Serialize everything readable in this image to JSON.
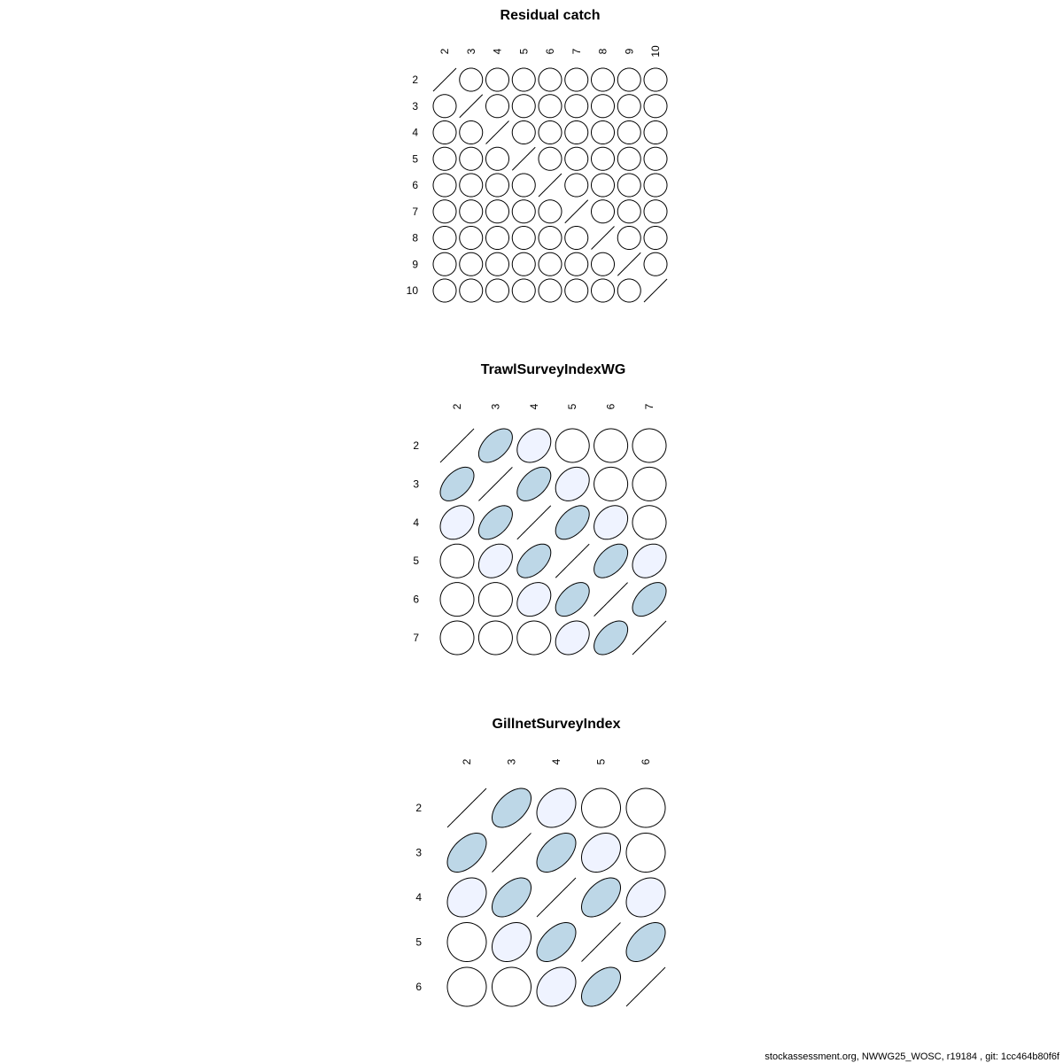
{
  "palette": {
    "strong": "#BDD7E7",
    "weak": "#EFF3FF",
    "none": "#FFFFFF",
    "stroke": "#000000"
  },
  "chart_data": [
    {
      "type": "heatmap",
      "subtype": "correlation-ellipse",
      "title": "Residual catch",
      "labels": [
        "2",
        "3",
        "4",
        "5",
        "6",
        "7",
        "8",
        "9",
        "10"
      ],
      "matrix": [
        [
          1,
          0,
          0,
          0,
          0,
          0,
          0,
          0,
          0
        ],
        [
          0,
          1,
          0,
          0,
          0,
          0,
          0,
          0,
          0
        ],
        [
          0,
          0,
          1,
          0,
          0,
          0,
          0,
          0,
          0
        ],
        [
          0,
          0,
          0,
          1,
          0,
          0,
          0,
          0,
          0
        ],
        [
          0,
          0,
          0,
          0,
          1,
          0,
          0,
          0,
          0
        ],
        [
          0,
          0,
          0,
          0,
          0,
          1,
          0,
          0,
          0
        ],
        [
          0,
          0,
          0,
          0,
          0,
          0,
          1,
          0,
          0
        ],
        [
          0,
          0,
          0,
          0,
          0,
          0,
          0,
          1,
          0
        ],
        [
          0,
          0,
          0,
          0,
          0,
          0,
          0,
          0,
          1
        ]
      ]
    },
    {
      "type": "heatmap",
      "subtype": "correlation-ellipse",
      "title": "TrawlSurveyIndexWG",
      "labels": [
        "2",
        "3",
        "4",
        "5",
        "6",
        "7"
      ],
      "matrix": [
        [
          1,
          0.5,
          0.25,
          0,
          0,
          0
        ],
        [
          0.5,
          1,
          0.5,
          0.25,
          0,
          0
        ],
        [
          0.25,
          0.5,
          1,
          0.5,
          0.25,
          0
        ],
        [
          0,
          0.25,
          0.5,
          1,
          0.5,
          0.25
        ],
        [
          0,
          0,
          0.25,
          0.5,
          1,
          0.5
        ],
        [
          0,
          0,
          0,
          0.25,
          0.5,
          1
        ]
      ]
    },
    {
      "type": "heatmap",
      "subtype": "correlation-ellipse",
      "title": "GillnetSurveyIndex",
      "labels": [
        "2",
        "3",
        "4",
        "5",
        "6"
      ],
      "matrix": [
        [
          1,
          0.5,
          0.25,
          0,
          0
        ],
        [
          0.5,
          1,
          0.5,
          0.25,
          0
        ],
        [
          0.25,
          0.5,
          1,
          0.5,
          0.25
        ],
        [
          0,
          0.25,
          0.5,
          1,
          0.5
        ],
        [
          0,
          0,
          0.25,
          0.5,
          1
        ]
      ]
    }
  ],
  "footer": "stockassessment.org, NWWG25_WOSC, r19184 , git: 1cc464b80f6f"
}
